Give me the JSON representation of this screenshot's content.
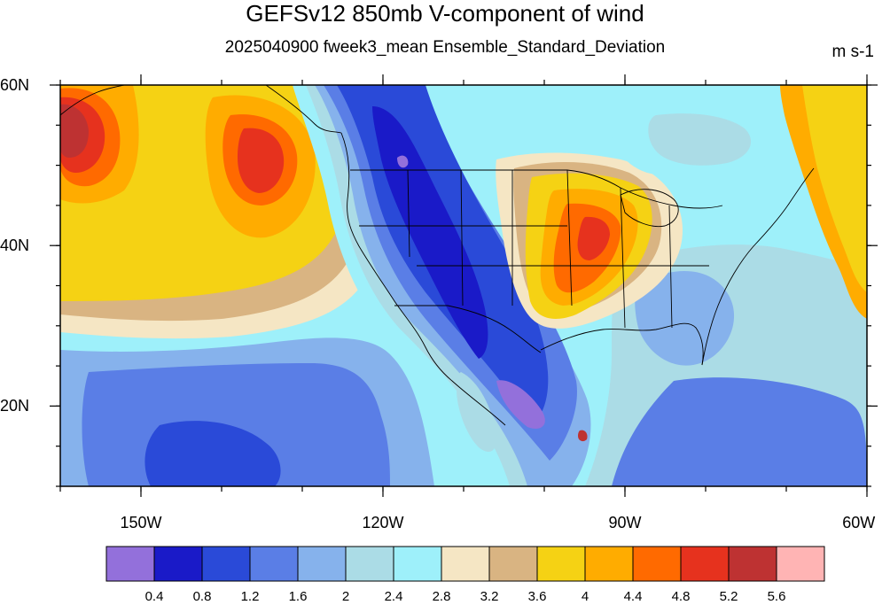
{
  "title": "GEFSv12 850mb V-component of wind",
  "subtitle": "2025040900 fweek3_mean Ensemble_Standard_Deviation",
  "units": "m s-1",
  "colors": {
    "levels": [
      "#9370db",
      "#1a1ac8",
      "#2a4ad8",
      "#5a7ee6",
      "#86b2ec",
      "#abdce6",
      "#9ef0fa",
      "#f5e6c4",
      "#d9b482",
      "#f5d214",
      "#ffac00",
      "#ff6a00",
      "#e6321e",
      "#be3232",
      "#ffb4b4"
    ]
  },
  "chart_data": {
    "type": "heatmap",
    "title": "GEFSv12 850mb V-component of wind",
    "subtitle": "2025040900 fweek3_mean Ensemble_Standard_Deviation",
    "units": "m s-1",
    "lon_range": [
      -160,
      -60
    ],
    "lat_range": [
      10,
      60
    ],
    "x_ticks": [
      {
        "value": -150,
        "label": "150W"
      },
      {
        "value": -120,
        "label": "120W"
      },
      {
        "value": -90,
        "label": "90W"
      },
      {
        "value": -60,
        "label": "60W"
      }
    ],
    "y_ticks": [
      {
        "value": 60,
        "label": "60N"
      },
      {
        "value": 40,
        "label": "40N"
      },
      {
        "value": 20,
        "label": "20N"
      }
    ],
    "colorbar_levels": [
      "0.4",
      "0.8",
      "1.2",
      "1.6",
      "2",
      "2.4",
      "2.8",
      "3.2",
      "3.6",
      "4",
      "4.4",
      "4.8",
      "5.2",
      "5.6"
    ],
    "colorbar_bins": 15,
    "field_features": [
      {
        "lon": -158,
        "lat": 54,
        "value": 5.0
      },
      {
        "lon": -138,
        "lat": 51,
        "value": 5.0
      },
      {
        "lon": -148,
        "lat": 42,
        "value": 4.1
      },
      {
        "lon": -128,
        "lat": 38,
        "value": 3.6
      },
      {
        "lon": -95,
        "lat": 38,
        "value": 4.6
      },
      {
        "lon": -93,
        "lat": 44,
        "value": 4.4
      },
      {
        "lon": -112,
        "lat": 45,
        "value": 1.0
      },
      {
        "lon": -108,
        "lat": 26,
        "value": 0.8
      },
      {
        "lon": -102,
        "lat": 18,
        "value": 0.6
      },
      {
        "lon": -80,
        "lat": 32,
        "value": 1.8
      },
      {
        "lon": -140,
        "lat": 15,
        "value": 1.1
      }
    ]
  }
}
